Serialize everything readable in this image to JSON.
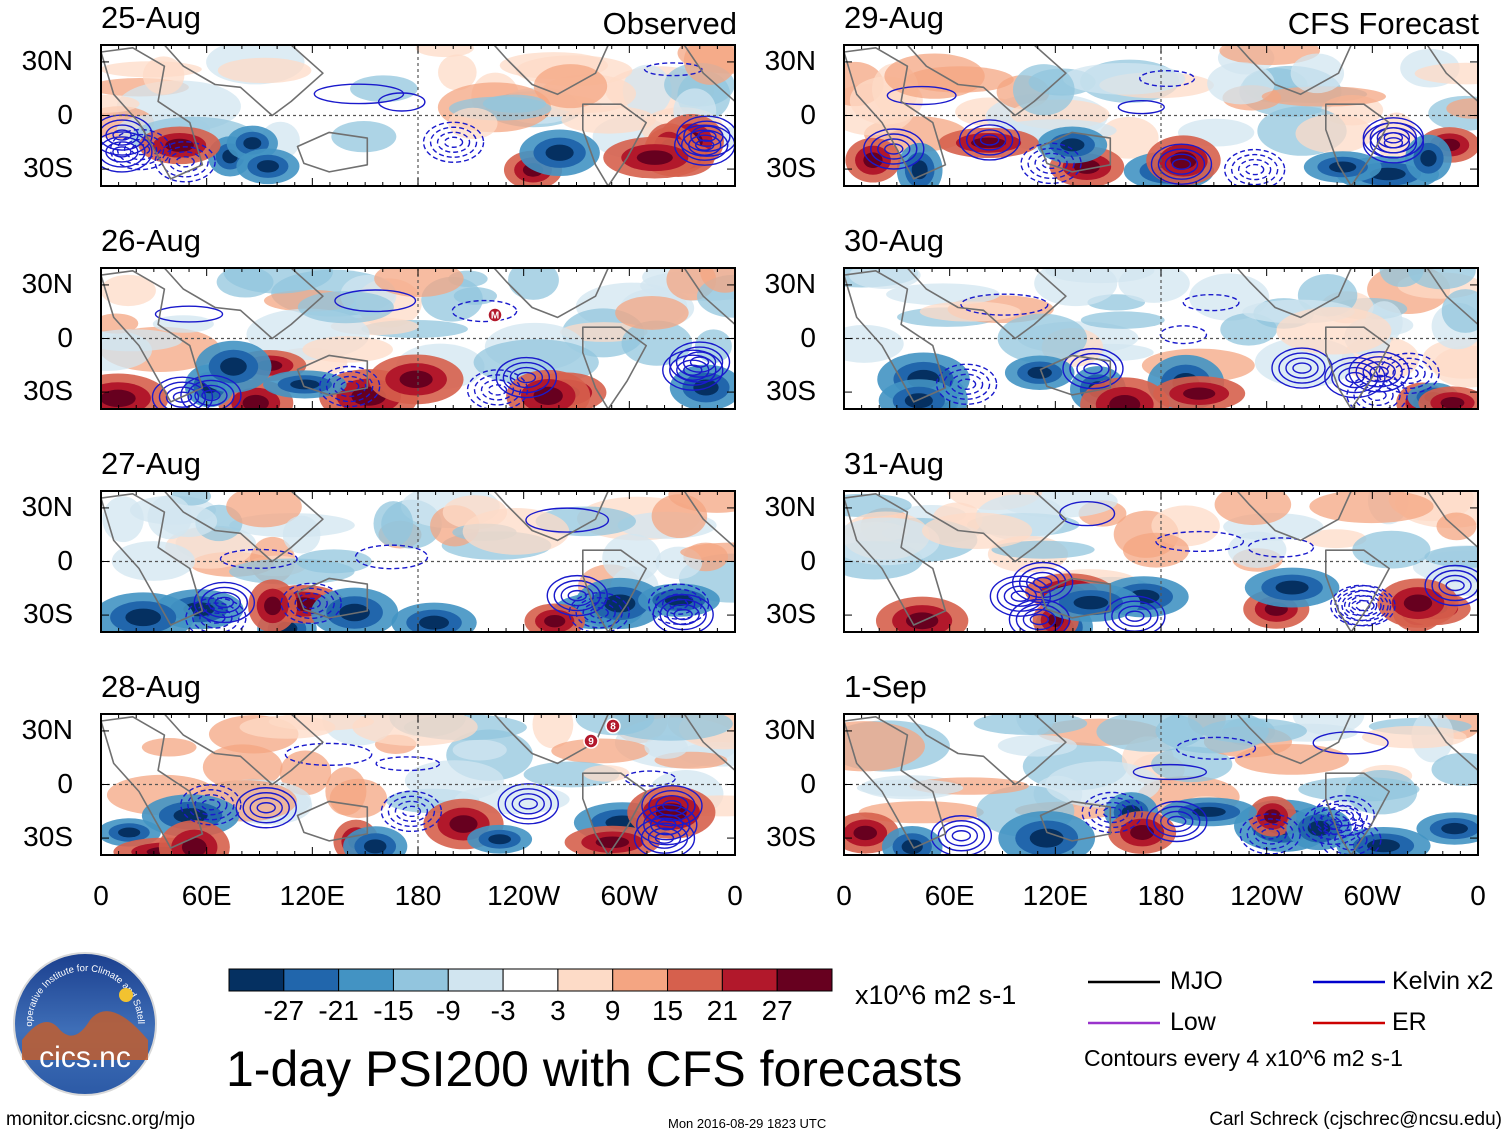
{
  "chart_data": {
    "type": "heatmap",
    "title": "1-day PSI200 with CFS forecasts",
    "variable": "PSI200",
    "units": "x10^6 m2 s-1",
    "columns": [
      {
        "name": "Observed",
        "dates": [
          "25-Aug",
          "26-Aug",
          "27-Aug",
          "28-Aug"
        ]
      },
      {
        "name": "CFS Forecast",
        "dates": [
          "29-Aug",
          "30-Aug",
          "31-Aug",
          "1-Sep"
        ]
      }
    ],
    "x_ticks": [
      "0",
      "60E",
      "120E",
      "180",
      "120W",
      "60W",
      "0"
    ],
    "y_ticks": [
      "30N",
      "0",
      "30S"
    ],
    "colorbar": {
      "colors": [
        "#053061",
        "#2166ac",
        "#4393c3",
        "#92c5de",
        "#d1e5f0",
        "#ffffff",
        "#fddbc7",
        "#f4a582",
        "#d6604d",
        "#b2182b",
        "#67001f"
      ],
      "labels": [
        "-27",
        "-21",
        "-15",
        "-9",
        "-3",
        "3",
        "9",
        "15",
        "21",
        "27"
      ]
    },
    "contour_legend": [
      {
        "label": "MJO",
        "color": "#000000"
      },
      {
        "label": "Kelvin x2",
        "color": "#0000cc"
      },
      {
        "label": "Low",
        "color": "#9933cc"
      },
      {
        "label": "ER",
        "color": "#cc0000"
      }
    ],
    "contour_note": "Contours every 4 x10^6 m2 s-1",
    "storm_markers": [
      {
        "date": "26-Aug",
        "label": "M"
      },
      {
        "date": "28-Aug",
        "label": "9"
      },
      {
        "date": "28-Aug",
        "label": "8"
      }
    ]
  },
  "footer": {
    "logo_text": "cics.nc",
    "logo_ring": "Cooperative Institute for Climate and Satellites",
    "website": "monitor.cicsnc.org/mjo",
    "timestamp": "Mon 2016-08-29 1823 UTC",
    "author": "Carl Schreck (cjschrec@ncsu.edu)"
  }
}
